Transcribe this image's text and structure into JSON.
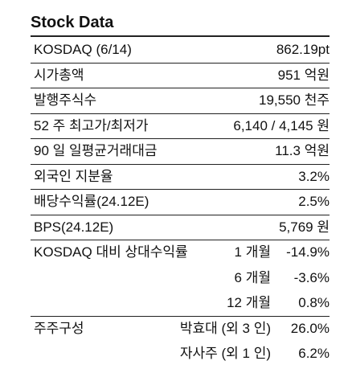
{
  "title": "Stock Data",
  "rows": [
    {
      "label": "KOSDAQ (6/14)",
      "value": "862.19pt"
    },
    {
      "label": "시가총액",
      "value": "951 억원"
    },
    {
      "label": "발행주식수",
      "value": "19,550 천주"
    },
    {
      "label": "52 주 최고가/최저가",
      "value": "6,140 / 4,145 원"
    },
    {
      "label": "90 일 일평균거래대금",
      "value": "11.3 억원"
    },
    {
      "label": "외국인 지분율",
      "value": "3.2%"
    },
    {
      "label": "배당수익률(24.12E)",
      "value": "2.5%"
    },
    {
      "label": "BPS(24.12E)",
      "value": "5,769 원"
    }
  ],
  "relative_return": {
    "label": "KOSDAQ 대비 상대수익률",
    "periods": [
      {
        "period": "1 개월",
        "value": "-14.9%"
      },
      {
        "period": "6 개월",
        "value": "-3.6%"
      },
      {
        "period": "12 개월",
        "value": "0.8%"
      }
    ]
  },
  "shareholders": {
    "label": "주주구성",
    "holders": [
      {
        "name": "박효대 (외 3 인)",
        "value": "26.0%"
      },
      {
        "name": "자사주 (외 1 인)",
        "value": "6.2%"
      }
    ]
  }
}
